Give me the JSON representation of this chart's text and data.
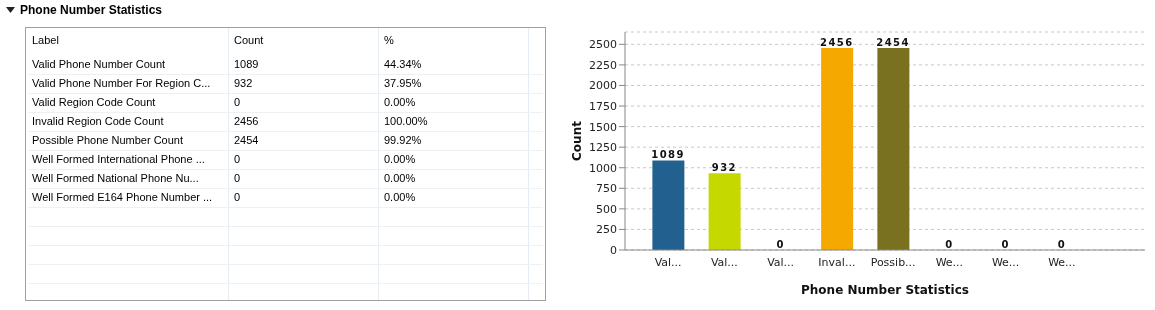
{
  "chart_data": [
    {
      "type": "other",
      "title": "Phone Number Statistics",
      "annotations": [
        "Label",
        "Count",
        "%",
        "Valid Phone Number Count",
        "1089",
        "44.34%",
        "Valid Phone Number For Region C...",
        "932",
        "37.95%",
        "Valid Region Code Count",
        "0",
        "0.00%",
        "Invalid Region Code Count",
        "2456",
        "100.00%",
        "Possible Phone Number Count",
        "2454",
        "99.92%",
        "Well Formed International Phone ...",
        "0",
        "0.00%",
        "Well Formed National Phone Nu...",
        "0",
        "0.00%",
        "Well Formed E164 Phone Number ...",
        "0",
        "0.00%"
      ]
    },
    {
      "type": "bar",
      "xlabel": "Phone Number Statistics",
      "ylabel": "Count",
      "categories": [
        "Val...",
        "Val...",
        "Val...",
        "Inval...",
        "Possib...",
        "We...",
        "We...",
        "We..."
      ],
      "values": [
        1089,
        932,
        0,
        2456,
        2454,
        0,
        0,
        0
      ],
      "colors": [
        "#22618f",
        "#c5d900",
        "#7f7f7f",
        "#f5a800",
        "#797020",
        "#7f7f7f",
        "#7f7f7f",
        "#7f7f7f"
      ],
      "ylim": [
        0,
        2650
      ],
      "yticks": [
        0,
        250,
        500,
        750,
        1000,
        1250,
        1500,
        1750,
        2000,
        2250,
        2500
      ],
      "grid": "y",
      "data_labels": true
    }
  ]
}
